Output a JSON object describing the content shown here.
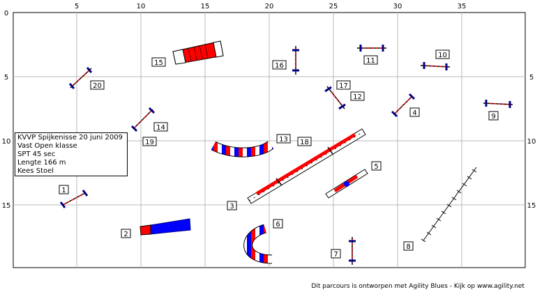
{
  "grid": {
    "x_ticks": [
      "5",
      "10",
      "15",
      "20",
      "25",
      "30",
      "35"
    ],
    "y_ticks_left": [
      "0",
      "5",
      "10",
      "15"
    ],
    "y_ticks_right": [
      "5",
      "10",
      "15"
    ]
  },
  "course_info": {
    "line1": "KVVP Spijkenisse 20 juni 2009",
    "line2": "Vast Open klasse",
    "line3": "SPT 45 sec",
    "line4": "Lengte 166 m",
    "line5": "Kees Stoel"
  },
  "obstacles": [
    {
      "number": "1",
      "type": "hurdle"
    },
    {
      "number": "2",
      "type": "closed-tunnel"
    },
    {
      "number": "3",
      "type": "dog-walk"
    },
    {
      "number": "4",
      "type": "hurdle"
    },
    {
      "number": "5",
      "type": "seesaw"
    },
    {
      "number": "6",
      "type": "tunnel"
    },
    {
      "number": "7",
      "type": "hurdle"
    },
    {
      "number": "8",
      "type": "weave-poles"
    },
    {
      "number": "9",
      "type": "hurdle"
    },
    {
      "number": "10",
      "type": "hurdle"
    },
    {
      "number": "11",
      "type": "hurdle"
    },
    {
      "number": "12",
      "type": "hurdle"
    },
    {
      "number": "13",
      "type": "tunnel"
    },
    {
      "number": "14",
      "type": "hurdle"
    },
    {
      "number": "15",
      "type": "tunnel"
    },
    {
      "number": "16",
      "type": "hurdle"
    },
    {
      "number": "17",
      "type": "hurdle"
    },
    {
      "number": "18",
      "type": "dog-walk"
    },
    {
      "number": "19",
      "type": "hurdle"
    },
    {
      "number": "20",
      "type": "hurdle"
    }
  ],
  "colors": {
    "grid": "#b8b8b8",
    "red": "#ff0000",
    "blue": "#0000ff",
    "navy": "#000080",
    "border": "#000000"
  },
  "footer": "Dit parcours is ontworpen met Agility Blues - Kijk op www.agility.net"
}
